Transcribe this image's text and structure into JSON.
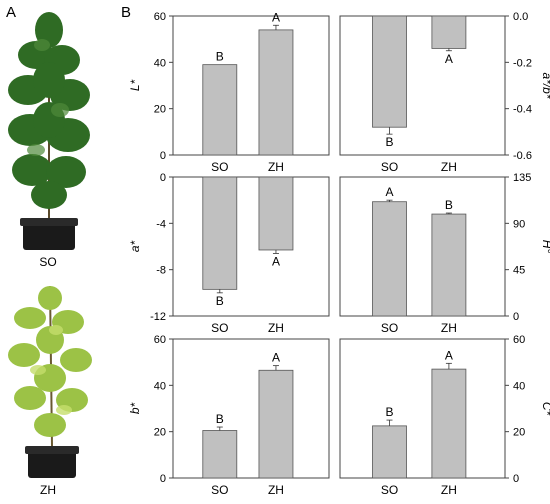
{
  "panel_labels": {
    "a": "A",
    "b": "B"
  },
  "plant_labels": {
    "so": "SO",
    "zh": "ZH"
  },
  "colors": {
    "bar": "#c0c0c0",
    "bar_edge": "#555555",
    "so_foliage": "#2f6b24",
    "zh_foliage": "#9cc246",
    "pot": "#1a1a1a"
  },
  "chart_data": [
    {
      "type": "bar",
      "categories": [
        "SO",
        "ZH"
      ],
      "values": [
        39,
        54
      ],
      "errors": [
        0,
        2
      ],
      "letters": [
        "B",
        "A"
      ],
      "ylabel": "L*",
      "ylim": [
        0,
        60
      ],
      "yticks": [
        0,
        20,
        40,
        60
      ],
      "yaxis_side": "left"
    },
    {
      "type": "bar",
      "categories": [
        "SO",
        "ZH"
      ],
      "values": [
        -0.48,
        -0.14
      ],
      "errors": [
        0.03,
        0.01
      ],
      "letters": [
        "B",
        "A"
      ],
      "ylabel": "a*/b*",
      "ylim": [
        -0.6,
        0.0
      ],
      "yticks": [
        "-0.6",
        "-0.4",
        "-0.2",
        "0.0"
      ],
      "yaxis_side": "right"
    },
    {
      "type": "bar",
      "categories": [
        "SO",
        "ZH"
      ],
      "values": [
        -9.7,
        -6.3
      ],
      "errors": [
        0.3,
        0.3
      ],
      "letters": [
        "B",
        "A"
      ],
      "ylabel": "a*",
      "ylim": [
        -12,
        0
      ],
      "yticks": [
        -12,
        -8,
        -4,
        0
      ],
      "yaxis_side": "left"
    },
    {
      "type": "bar",
      "categories": [
        "SO",
        "ZH"
      ],
      "values": [
        111,
        99
      ],
      "errors": [
        1.5,
        1
      ],
      "letters": [
        "A",
        "B"
      ],
      "ylabel": "H°",
      "ylim": [
        0,
        135
      ],
      "yticks": [
        0,
        45,
        90,
        135
      ],
      "yaxis_side": "right"
    },
    {
      "type": "bar",
      "categories": [
        "SO",
        "ZH"
      ],
      "values": [
        20.5,
        46.5
      ],
      "errors": [
        1.5,
        2
      ],
      "letters": [
        "B",
        "A"
      ],
      "ylabel": "b*",
      "ylim": [
        0,
        60
      ],
      "yticks": [
        0,
        20,
        40,
        60
      ],
      "yaxis_side": "left"
    },
    {
      "type": "bar",
      "categories": [
        "SO",
        "ZH"
      ],
      "values": [
        22.5,
        47
      ],
      "errors": [
        2.5,
        2.5
      ],
      "letters": [
        "B",
        "A"
      ],
      "ylabel": "C*",
      "ylim": [
        0,
        60
      ],
      "yticks": [
        0,
        20,
        40,
        60
      ],
      "yaxis_side": "right"
    }
  ]
}
